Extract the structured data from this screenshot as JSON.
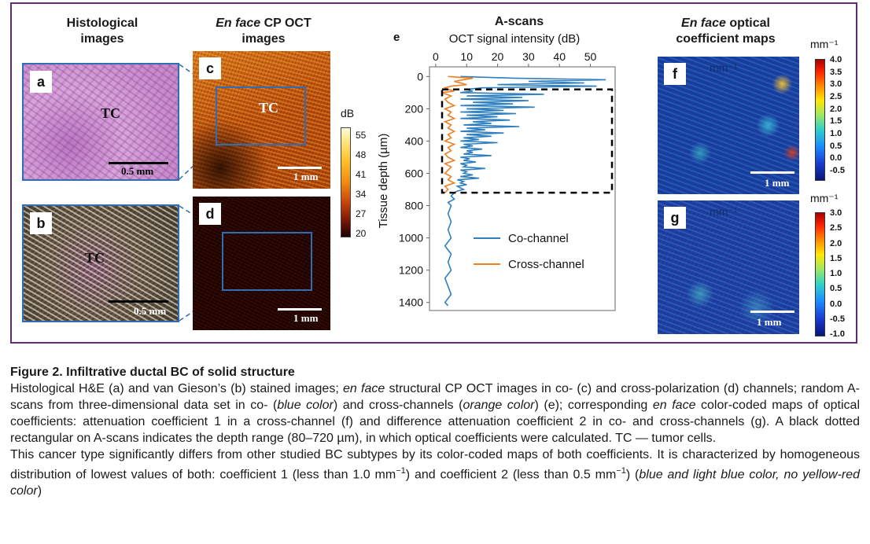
{
  "headers": {
    "histology": "Histological images",
    "cpoct_em": "En face",
    "cpoct_rest": " CP OCT images",
    "ascans": "A-scans",
    "coef_em": "En face",
    "coef_rest": " optical coefficient maps"
  },
  "panels": {
    "a": "a",
    "b": "b",
    "c": "c",
    "d": "d",
    "e": "e",
    "f": "f",
    "g": "g"
  },
  "annotations": {
    "tc": "TC",
    "scale_05mm": "0.5 mm",
    "scale_1mm": "1 mm",
    "map_unit_overlay": "mm⁻¹"
  },
  "colorbar_db": {
    "unit": "dB",
    "ticks": [
      "55",
      "48",
      "41",
      "34",
      "27",
      "20"
    ]
  },
  "colorbar_f": {
    "unit": "mm⁻¹",
    "ticks": [
      "4.0",
      "3.5",
      "3.0",
      "2.5",
      "2.0",
      "1.5",
      "1.0",
      "0.5",
      "0.0",
      "-0.5"
    ]
  },
  "colorbar_g": {
    "unit": "mm⁻¹",
    "ticks": [
      "3.0",
      "2.5",
      "2.0",
      "1.5",
      "1.0",
      "0.5",
      "0.0",
      "-0.5",
      "-1.0"
    ]
  },
  "chart_data": {
    "type": "line",
    "title": "",
    "xlabel": "OCT signal intensity (dB)",
    "ylabel": "Tissue depth (µm)",
    "xlim": [
      -2,
      58
    ],
    "ylim": [
      1450,
      -60
    ],
    "x_ticks": [
      0,
      10,
      20,
      30,
      40,
      50
    ],
    "y_ticks": [
      0,
      200,
      400,
      600,
      800,
      1000,
      1200,
      1400
    ],
    "legend_position": "center-right",
    "depth_range_box": [
      80,
      720
    ],
    "series": [
      {
        "name": "Co-channel",
        "color": "#2f7fc1",
        "depth": [
          0,
          10,
          20,
          30,
          40,
          50,
          60,
          70,
          80,
          90,
          100,
          110,
          120,
          130,
          140,
          150,
          160,
          170,
          180,
          190,
          200,
          210,
          220,
          230,
          240,
          250,
          260,
          270,
          280,
          290,
          300,
          310,
          320,
          330,
          340,
          350,
          360,
          370,
          380,
          390,
          400,
          410,
          420,
          430,
          440,
          450,
          460,
          470,
          480,
          490,
          500,
          510,
          520,
          530,
          540,
          550,
          560,
          570,
          580,
          590,
          600,
          610,
          620,
          630,
          640,
          650,
          660,
          670,
          680,
          690,
          700,
          710,
          720,
          740,
          760,
          780,
          800,
          850,
          900,
          950,
          1000,
          1050,
          1100,
          1150,
          1200,
          1250,
          1300,
          1350,
          1400,
          1420
        ],
        "values": [
          8,
          25,
          55,
          30,
          48,
          20,
          52,
          15,
          10,
          12,
          8,
          35,
          10,
          28,
          8,
          30,
          12,
          25,
          8,
          32,
          10,
          22,
          8,
          26,
          10,
          20,
          8,
          24,
          12,
          18,
          9,
          27,
          10,
          16,
          8,
          22,
          10,
          18,
          9,
          14,
          8,
          20,
          9,
          12,
          8,
          15,
          10,
          12,
          9,
          18,
          8,
          11,
          9,
          13,
          8,
          10,
          9,
          16,
          8,
          10,
          9,
          12,
          8,
          14,
          7,
          9,
          8,
          10,
          7,
          8,
          9,
          7,
          6,
          5,
          6,
          4,
          5,
          4,
          5,
          4,
          5,
          3,
          5,
          4,
          5,
          3,
          4,
          5,
          3,
          4
        ]
      },
      {
        "name": "Cross-channel",
        "color": "#ef7f22",
        "depth": [
          0,
          10,
          20,
          30,
          40,
          50,
          60,
          70,
          80,
          90,
          100,
          120,
          140,
          160,
          180,
          200,
          220,
          240,
          260,
          280,
          300,
          320,
          340,
          360,
          380,
          400,
          420,
          440,
          460,
          480,
          500,
          520,
          540,
          560,
          580,
          600,
          620,
          640,
          660,
          680,
          700,
          720
        ],
        "values": [
          4,
          12,
          9,
          6,
          8,
          10,
          5,
          3,
          4,
          6,
          2,
          5,
          3,
          4,
          6,
          3,
          5,
          4,
          6,
          3,
          5,
          4,
          6,
          4,
          5,
          3,
          6,
          4,
          5,
          3,
          4,
          6,
          3,
          5,
          4,
          3,
          5,
          4,
          6,
          3,
          4,
          3
        ]
      }
    ]
  },
  "caption": {
    "title": "Figure 2. Infiltrative ductal BC of solid structure",
    "p1": [
      {
        "t": "Histological H&E (a) and van Gieson’s (b) stained images; ",
        "i": false
      },
      {
        "t": "en face",
        "i": true
      },
      {
        "t": " structural CP OCT images in co- (c) and cross-polarization (d) channels; random A-scans from three-dimensional data set in co- (",
        "i": false
      },
      {
        "t": "blue color",
        "i": true
      },
      {
        "t": ") and cross-channels (",
        "i": false
      },
      {
        "t": "orange color",
        "i": true
      },
      {
        "t": ") (e); corresponding ",
        "i": false
      },
      {
        "t": "en face",
        "i": true
      },
      {
        "t": " color-coded maps of optical coefficients: attenuation coefficient 1 in a cross-channel (f) and difference attenuation coefficient 2 in co- and cross-channels (g). A black dotted rectangular on A-scans indicates the depth range (80–720 µm), in which optical coefficients were calculated. TC — tumor cells.",
        "i": false
      }
    ],
    "p2": [
      {
        "t": "This cancer type significantly differs from other studied BC subtypes by its color-coded maps of both coefficients. It is characterized by homogeneous distribution of lowest values of both: coefficient 1 (less than 1.0 mm",
        "i": false
      },
      {
        "t": "−1",
        "sup": true
      },
      {
        "t": ") and coefficient 2 (less than 0.5 mm",
        "i": false
      },
      {
        "t": "−1",
        "sup": true
      },
      {
        "t": ") (",
        "i": false
      },
      {
        "t": "blue and light blue color, no yellow-red color",
        "i": true
      },
      {
        "t": ")",
        "i": false
      }
    ]
  }
}
